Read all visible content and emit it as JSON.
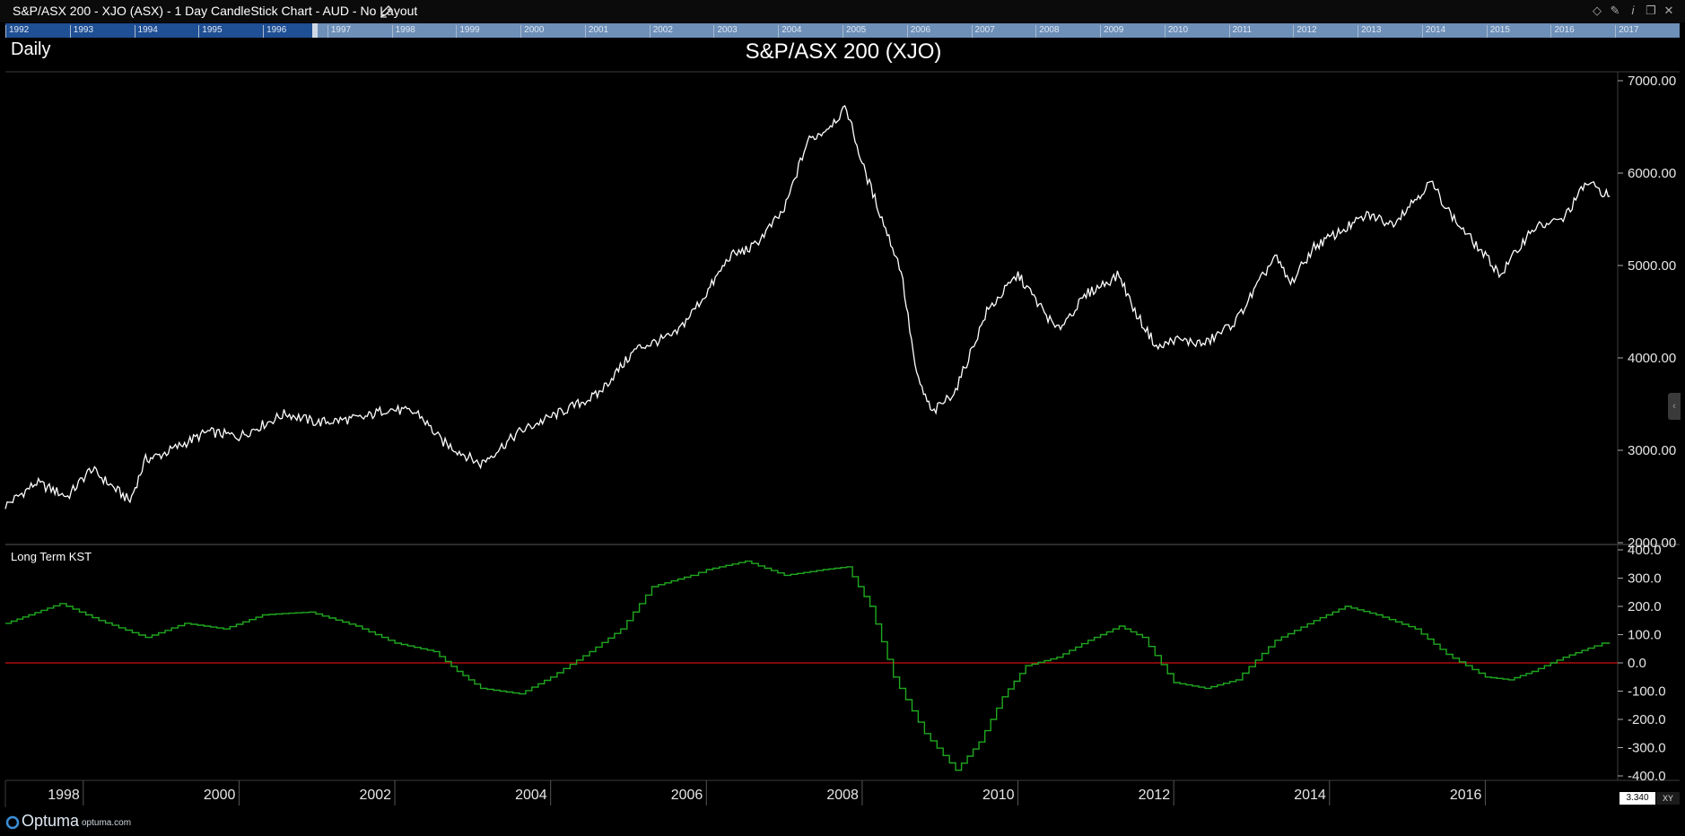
{
  "window": {
    "title": "S&P/ASX 200 - XJO (ASX) - 1 Day CandleStick Chart - AUD - No Layout",
    "edit_icon": "pencil-icon",
    "controls": [
      "diamond-icon",
      "pin-icon",
      "info-icon",
      "restore-icon",
      "close-icon"
    ]
  },
  "navigator": {
    "years": [
      "1992",
      "1993",
      "1994",
      "1995",
      "1996",
      "1997",
      "1998",
      "1999",
      "2000",
      "2001",
      "2002",
      "2003",
      "2004",
      "2005",
      "2006",
      "2007",
      "2008",
      "2009",
      "2010",
      "2011",
      "2012",
      "2013",
      "2014",
      "2015",
      "2016",
      "2017"
    ]
  },
  "period_label": "Daily",
  "footer": {
    "logo_text": "Optuma",
    "logo_url": "optuma.com",
    "scale_value": "3.340",
    "mode_label": "XY"
  },
  "colors": {
    "background": "#000000",
    "price_line": "#ffffff",
    "kst_line": "#1fa81f",
    "zero_line": "#cc1010",
    "grid_border": "#3c3c3c"
  },
  "chart_data": [
    {
      "type": "line",
      "title": "S&P/ASX 200 (XJO)",
      "series": [],
      "x": [
        1997.0,
        1997.4,
        1997.8,
        1998.1,
        1998.6,
        1998.8,
        1999.0,
        1999.6,
        2000.0,
        2000.6,
        2001.0,
        2001.6,
        2001.9,
        2002.3,
        2002.6,
        2003.1,
        2003.6,
        2004.1,
        2004.6,
        2005.1,
        2005.6,
        2006.0,
        2006.3,
        2006.6,
        2007.0,
        2007.3,
        2007.5,
        2007.8,
        2008.0,
        2008.3,
        2008.5,
        2008.7,
        2008.9,
        2009.2,
        2009.6,
        2009.9,
        2010.0,
        2010.5,
        2010.9,
        2011.3,
        2011.5,
        2011.8,
        2012.0,
        2012.4,
        2012.8,
        2013.3,
        2013.5,
        2013.8,
        2014.0,
        2014.5,
        2014.8,
        2015.3,
        2015.6,
        2016.0,
        2016.2,
        2016.6,
        2017.0,
        2017.3,
        2017.6
      ],
      "y": [
        2400,
        2650,
        2500,
        2800,
        2450,
        2900,
        2950,
        3200,
        3150,
        3400,
        3300,
        3350,
        3450,
        3400,
        3100,
        2850,
        3200,
        3400,
        3600,
        4100,
        4250,
        4700,
        5100,
        5200,
        5600,
        6350,
        6450,
        6700,
        6100,
        5400,
        4950,
        3800,
        3400,
        3650,
        4500,
        4800,
        4900,
        4300,
        4700,
        4900,
        4500,
        4100,
        4200,
        4150,
        4400,
        5100,
        4800,
        5200,
        5300,
        5550,
        5450,
        5900,
        5500,
        5100,
        4900,
        5400,
        5500,
        5900,
        5750
      ],
      "ylim": [
        2000,
        7000
      ],
      "y_ticks": [
        "2000.00",
        "3000.00",
        "4000.00",
        "5000.00",
        "6000.00",
        "7000.00"
      ]
    },
    {
      "type": "line",
      "title": "Long Term KST",
      "series": [],
      "x": [
        1997.0,
        1997.3,
        1997.7,
        1998.2,
        1998.8,
        1999.3,
        1999.8,
        2000.3,
        2000.9,
        2001.5,
        2002.0,
        2002.5,
        2002.8,
        2003.1,
        2003.6,
        2004.0,
        2004.5,
        2004.9,
        2005.3,
        2005.8,
        2006.0,
        2006.5,
        2007.0,
        2007.5,
        2007.8,
        2008.1,
        2008.4,
        2008.8,
        2009.2,
        2009.5,
        2009.8,
        2010.1,
        2010.5,
        2010.9,
        2011.3,
        2011.6,
        2012.0,
        2012.4,
        2012.8,
        2013.3,
        2013.8,
        2014.2,
        2014.6,
        2015.1,
        2015.5,
        2016.0,
        2016.3,
        2016.6,
        2017.0,
        2017.4,
        2017.6
      ],
      "y": [
        140,
        170,
        210,
        150,
        90,
        140,
        120,
        170,
        180,
        130,
        70,
        40,
        -30,
        -90,
        -110,
        -50,
        40,
        120,
        270,
        310,
        330,
        360,
        310,
        330,
        340,
        200,
        -50,
        -250,
        -380,
        -280,
        -120,
        -10,
        20,
        80,
        130,
        90,
        -70,
        -90,
        -60,
        80,
        150,
        200,
        170,
        120,
        30,
        -50,
        -60,
        -30,
        20,
        60,
        80
      ],
      "ylim": [
        -400,
        400
      ],
      "y_ticks": [
        "-400.0",
        "-300.0",
        "-200.0",
        "-100.0",
        "0.0",
        "100.0",
        "200.0",
        "300.0",
        "400.0"
      ],
      "reference_line": 0
    }
  ],
  "x_axis": {
    "tick_labels": [
      "1998",
      "2000",
      "2002",
      "2004",
      "2006",
      "2008",
      "2010",
      "2012",
      "2014",
      "2016"
    ],
    "tick_values": [
      1998,
      2000,
      2002,
      2004,
      2006,
      2008,
      2010,
      2012,
      2014,
      2016
    ],
    "range": [
      1997.0,
      2017.7
    ]
  }
}
